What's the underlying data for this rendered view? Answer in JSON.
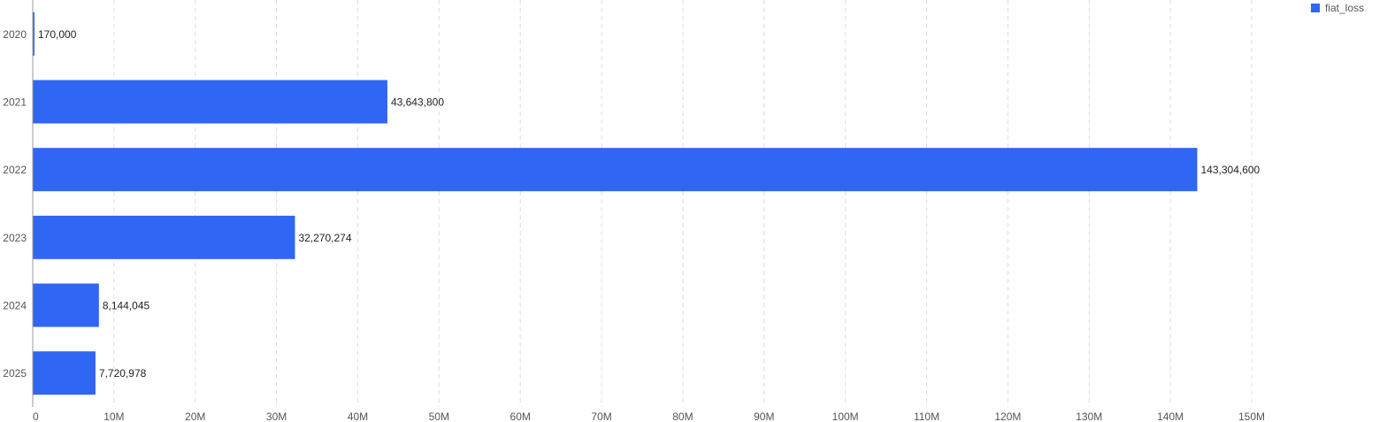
{
  "chart_data": {
    "type": "bar",
    "orientation": "horizontal",
    "categories": [
      "2020",
      "2021",
      "2022",
      "2023",
      "2024",
      "2025"
    ],
    "series": [
      {
        "name": "fiat_loss",
        "values": [
          170000,
          43643800,
          143304600,
          32270274,
          8144045,
          7720978
        ],
        "labels": [
          "170,000",
          "43,643,800",
          "143,304,600",
          "32,270,274",
          "8,144,045",
          "7,720,978"
        ]
      }
    ],
    "xlim": [
      0,
      150000000
    ],
    "xticks": [
      0,
      10000000,
      20000000,
      30000000,
      40000000,
      50000000,
      60000000,
      70000000,
      80000000,
      90000000,
      100000000,
      110000000,
      120000000,
      130000000,
      140000000,
      150000000
    ],
    "xtick_labels": [
      "0",
      "10M",
      "20M",
      "30M",
      "40M",
      "50M",
      "60M",
      "70M",
      "80M",
      "90M",
      "100M",
      "110M",
      "120M",
      "130M",
      "140M",
      "150M"
    ],
    "title": "",
    "xlabel": "",
    "ylabel": "",
    "grid": "vertical-dashed",
    "legend": "top-right",
    "color": "#2f66f3"
  }
}
